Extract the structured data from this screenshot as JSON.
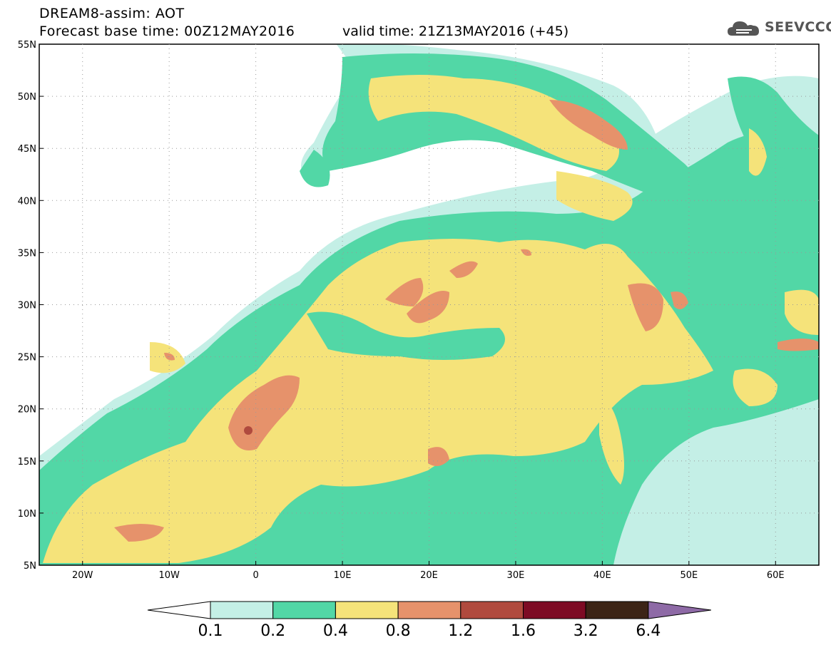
{
  "header": {
    "model_line": "DREAM8-assim: AOT",
    "base_time": "Forecast base time: 00Z12MAY2016",
    "valid_time": "valid time: 21Z13MAY2016 (+45)",
    "logo_text": "SEEVCCC"
  },
  "map": {
    "lon_range": [
      -25,
      65
    ],
    "lat_range": [
      5,
      55
    ],
    "lat_labels": [
      "55N",
      "50N",
      "45N",
      "40N",
      "35N",
      "30N",
      "25N",
      "20N",
      "15N",
      "10N",
      "5N"
    ],
    "lat_values": [
      55,
      50,
      45,
      40,
      35,
      30,
      25,
      20,
      15,
      10,
      5
    ],
    "lon_labels": [
      "20W",
      "10W",
      "0",
      "10E",
      "20E",
      "30E",
      "40E",
      "50E",
      "60E"
    ],
    "lon_values": [
      -20,
      -10,
      0,
      10,
      20,
      30,
      40,
      50,
      60
    ],
    "gridlines": "dotted"
  },
  "colorbar": {
    "labels": [
      "0.1",
      "0.2",
      "0.4",
      "0.8",
      "1.2",
      "1.6",
      "3.2",
      "6.4"
    ],
    "colors": [
      "#ffffff",
      "#c4efe6",
      "#52d7a6",
      "#f5e37a",
      "#e6926b",
      "#b04a3e",
      "#7d0b24",
      "#3c2416",
      "#8e6aa6"
    ]
  },
  "colors": {
    "aot_0_1_0_2": "#c4efe6",
    "aot_0_2_0_4": "#52d7a6",
    "aot_0_4_0_8": "#f5e37a",
    "aot_0_8_1_2": "#e6926b",
    "aot_1_2_1_6": "#b04a3e"
  }
}
